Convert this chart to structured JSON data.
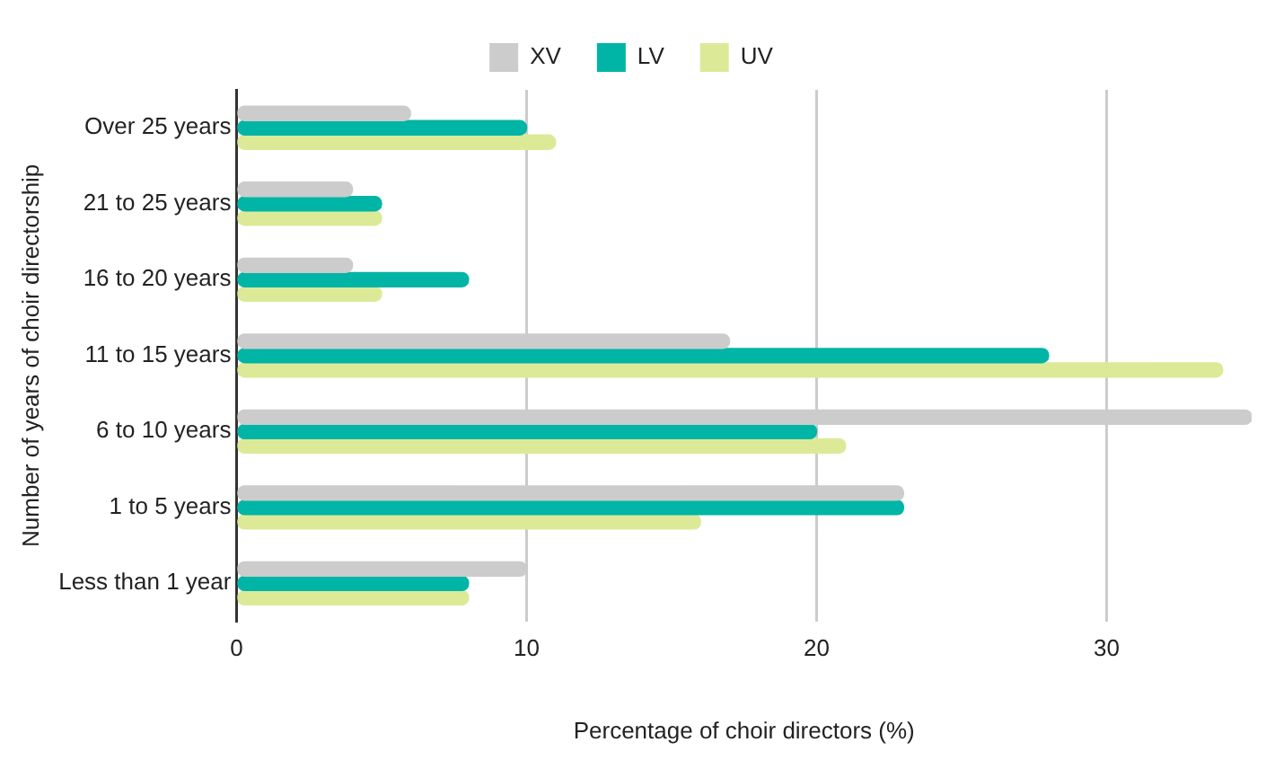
{
  "chart_data": {
    "type": "bar",
    "orientation": "horizontal",
    "xlabel": "Percentage of choir directors (%)",
    "ylabel": "Number of years of choir directorship",
    "categories": [
      "Over 25 years",
      "21 to 25 years",
      "16 to 20 years",
      "11 to 15 years",
      "6 to 10 years",
      "1 to 5 years",
      "Less than 1 year"
    ],
    "series": [
      {
        "name": "XV",
        "color": "#cccccc",
        "values": [
          6,
          4,
          4,
          17,
          35,
          23,
          10
        ]
      },
      {
        "name": "LV",
        "color": "#00b5a5",
        "values": [
          10,
          5,
          8,
          28,
          20,
          23,
          8
        ]
      },
      {
        "name": "UV",
        "color": "#dcea98",
        "values": [
          11,
          5,
          5,
          34,
          21,
          16,
          8
        ]
      }
    ],
    "xlim": [
      0,
      35
    ],
    "xticks": [
      0,
      10,
      20,
      30
    ],
    "grid": "x",
    "legend": "top"
  }
}
